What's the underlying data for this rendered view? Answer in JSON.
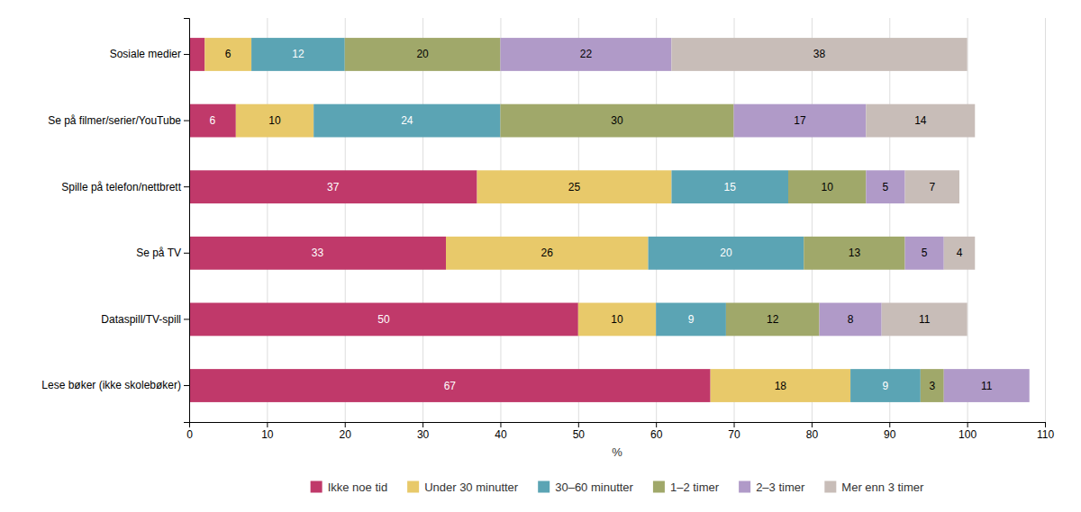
{
  "chart_data": {
    "type": "bar",
    "orientation": "horizontal",
    "stacked": true,
    "categories": [
      "Sosiale medier",
      "Se på filmer/serier/YouTube",
      "Spille på telefon/nettbrett",
      "Se på TV",
      "Dataspill/TV-spill",
      "Lese bøker (ikke skolebøker)"
    ],
    "series": [
      {
        "name": "Ikke noe tid",
        "color": "#c0396a",
        "values": [
          2,
          6,
          37,
          33,
          50,
          67
        ],
        "value_labels": [
          null,
          "6",
          "37",
          "33",
          "50",
          "67"
        ]
      },
      {
        "name": "Under 30 minutter",
        "color": "#e8c96a",
        "values": [
          6,
          10,
          25,
          26,
          10,
          18
        ]
      },
      {
        "name": "30–60 minutter",
        "color": "#5ba4b4",
        "values": [
          12,
          24,
          15,
          20,
          9,
          9
        ]
      },
      {
        "name": "1–2 timer",
        "color": "#a0a86a",
        "values": [
          20,
          30,
          10,
          13,
          12,
          3
        ]
      },
      {
        "name": "2–3 timer",
        "color": "#b09ac8",
        "values": [
          22,
          17,
          5,
          5,
          8,
          11
        ]
      },
      {
        "name": "Mer enn 3 timer",
        "color": "#c8bdb8",
        "values": [
          38,
          14,
          7,
          4,
          11,
          0
        ],
        "value_labels": [
          "38",
          "14",
          "7",
          "4",
          "11",
          null
        ]
      }
    ],
    "x_label": "%",
    "xlim": [
      0,
      110
    ],
    "xticks": [
      0,
      10,
      20,
      30,
      40,
      50,
      60,
      70,
      80,
      90,
      100,
      110
    ],
    "grid": true,
    "legend": "bottom",
    "data_labels": true
  }
}
